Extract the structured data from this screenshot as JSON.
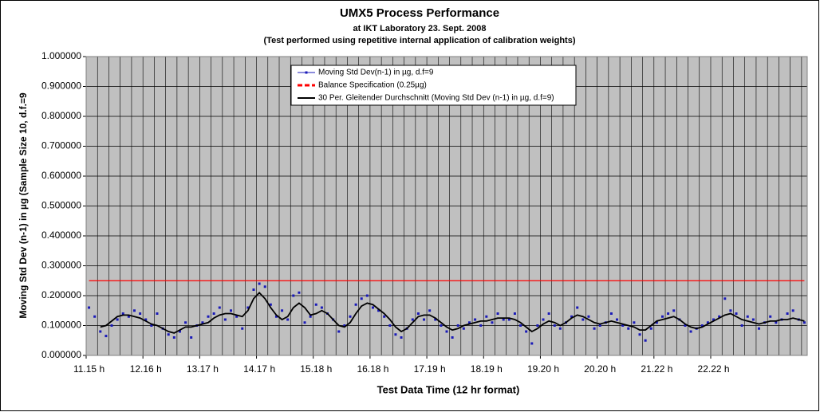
{
  "chart_data": {
    "type": "line",
    "title": "UMX5 Process Performance",
    "subtitle": [
      "at IKT Laboratory 23. Sept. 2008",
      "(Test performed using repetitive internal application of calibration weights)"
    ],
    "y_label": "Moving Std Dev (n-1) in µg (Sample Size 10, d.f.=9",
    "x_label": "Test Data Time (12 hr format)",
    "categories": [
      "11.15 h",
      null,
      null,
      null,
      null,
      null,
      null,
      null,
      null,
      null,
      "12.16 h",
      null,
      null,
      null,
      null,
      null,
      null,
      null,
      null,
      null,
      "13.17 h",
      null,
      null,
      null,
      null,
      null,
      null,
      null,
      null,
      null,
      "14.17 h",
      null,
      null,
      null,
      null,
      null,
      null,
      null,
      null,
      null,
      "15.18 h",
      null,
      null,
      null,
      null,
      null,
      null,
      null,
      null,
      null,
      "16.18 h",
      null,
      null,
      null,
      null,
      null,
      null,
      null,
      null,
      null,
      "17.19 h",
      null,
      null,
      null,
      null,
      null,
      null,
      null,
      null,
      null,
      "18.19 h",
      null,
      null,
      null,
      null,
      null,
      null,
      null,
      null,
      null,
      "19.20 h",
      null,
      null,
      null,
      null,
      null,
      null,
      null,
      null,
      null,
      "20.20 h",
      null,
      null,
      null,
      null,
      null,
      null,
      null,
      null,
      null,
      "21.22 h",
      null,
      null,
      null,
      null,
      null,
      null,
      null,
      null,
      null,
      "22.22 h",
      null,
      null,
      null,
      null,
      null,
      null,
      null,
      null,
      null,
      null,
      null,
      null,
      null,
      null,
      null,
      null
    ],
    "series": [
      {
        "name": "Moving Std Dev(n-1) in µg, d.f=9",
        "color": "#1a1ab8",
        "style": "markers",
        "values": [
          0.16,
          0.13,
          0.08,
          0.065,
          0.1,
          0.12,
          0.14,
          0.13,
          0.15,
          0.14,
          0.12,
          0.1,
          0.14,
          0.09,
          0.07,
          0.06,
          0.08,
          0.11,
          0.06,
          0.1,
          0.11,
          0.13,
          0.14,
          0.16,
          0.12,
          0.15,
          0.13,
          0.09,
          0.16,
          0.22,
          0.24,
          0.23,
          0.17,
          0.13,
          0.15,
          0.12,
          0.2,
          0.21,
          0.11,
          0.13,
          0.17,
          0.16,
          0.14,
          0.12,
          0.08,
          0.1,
          0.13,
          0.17,
          0.19,
          0.2,
          0.16,
          0.15,
          0.13,
          0.1,
          0.07,
          0.06,
          0.09,
          0.12,
          0.14,
          0.12,
          0.15,
          0.12,
          0.1,
          0.08,
          0.06,
          0.1,
          0.09,
          0.11,
          0.12,
          0.1,
          0.13,
          0.11,
          0.14,
          0.12,
          0.12,
          0.14,
          0.1,
          0.08,
          0.04,
          0.1,
          0.12,
          0.14,
          0.1,
          0.09,
          0.11,
          0.13,
          0.16,
          0.12,
          0.13,
          0.09,
          0.1,
          0.11,
          0.14,
          0.12,
          0.1,
          0.09,
          0.11,
          0.07,
          0.05,
          0.09,
          0.11,
          0.13,
          0.14,
          0.15,
          0.12,
          0.1,
          0.08,
          0.09,
          0.1,
          0.11,
          0.12,
          0.13,
          0.19,
          0.15,
          0.14,
          0.1,
          0.13,
          0.12,
          0.09,
          0.11,
          0.13,
          0.11,
          0.12,
          0.14,
          0.15,
          0.12,
          0.11
        ]
      },
      {
        "name": "Balance Specification (0.25µg)",
        "color": "#ff0000",
        "style": "dashed",
        "values": [
          0.25,
          0.25,
          0.25,
          0.25,
          0.25,
          0.25,
          0.25,
          0.25,
          0.25,
          0.25,
          0.25,
          0.25,
          0.25,
          0.25,
          0.25,
          0.25,
          0.25,
          0.25,
          0.25,
          0.25,
          0.25,
          0.25,
          0.25,
          0.25,
          0.25,
          0.25,
          0.25,
          0.25,
          0.25,
          0.25,
          0.25,
          0.25,
          0.25,
          0.25,
          0.25,
          0.25,
          0.25,
          0.25,
          0.25,
          0.25,
          0.25,
          0.25,
          0.25,
          0.25,
          0.25,
          0.25,
          0.25,
          0.25,
          0.25,
          0.25,
          0.25,
          0.25,
          0.25,
          0.25,
          0.25,
          0.25,
          0.25,
          0.25,
          0.25,
          0.25,
          0.25,
          0.25,
          0.25,
          0.25,
          0.25,
          0.25,
          0.25,
          0.25,
          0.25,
          0.25,
          0.25,
          0.25,
          0.25,
          0.25,
          0.25,
          0.25,
          0.25,
          0.25,
          0.25,
          0.25,
          0.25,
          0.25,
          0.25,
          0.25,
          0.25,
          0.25,
          0.25,
          0.25,
          0.25,
          0.25,
          0.25,
          0.25,
          0.25,
          0.25,
          0.25,
          0.25,
          0.25,
          0.25,
          0.25,
          0.25,
          0.25,
          0.25,
          0.25,
          0.25,
          0.25,
          0.25,
          0.25,
          0.25,
          0.25,
          0.25,
          0.25,
          0.25,
          0.25,
          0.25,
          0.25,
          0.25,
          0.25,
          0.25,
          0.25,
          0.25,
          0.25,
          0.25,
          0.25,
          0.25,
          0.25,
          0.25,
          0.25
        ]
      },
      {
        "name": "30 Per. Gleitender Durchschnitt (Moving Std Dev (n-1) in µg, d.f=9)",
        "color": "#000000",
        "style": "line",
        "values": [
          null,
          null,
          0.095,
          0.1,
          0.115,
          0.13,
          0.135,
          0.135,
          0.13,
          0.125,
          0.115,
          0.105,
          0.1,
          0.09,
          0.08,
          0.075,
          0.085,
          0.095,
          0.095,
          0.1,
          0.105,
          0.11,
          0.125,
          0.135,
          0.14,
          0.14,
          0.135,
          0.13,
          0.15,
          0.19,
          0.21,
          0.19,
          0.16,
          0.135,
          0.12,
          0.13,
          0.16,
          0.175,
          0.16,
          0.135,
          0.14,
          0.15,
          0.14,
          0.12,
          0.1,
          0.095,
          0.11,
          0.14,
          0.165,
          0.175,
          0.17,
          0.155,
          0.14,
          0.12,
          0.095,
          0.08,
          0.09,
          0.11,
          0.13,
          0.135,
          0.135,
          0.125,
          0.11,
          0.095,
          0.085,
          0.09,
          0.1,
          0.105,
          0.11,
          0.115,
          0.115,
          0.12,
          0.125,
          0.125,
          0.125,
          0.12,
          0.11,
          0.095,
          0.08,
          0.09,
          0.105,
          0.115,
          0.11,
          0.1,
          0.11,
          0.125,
          0.135,
          0.13,
          0.12,
          0.11,
          0.105,
          0.11,
          0.115,
          0.11,
          0.105,
          0.1,
          0.095,
          0.085,
          0.085,
          0.1,
          0.115,
          0.12,
          0.125,
          0.13,
          0.12,
          0.105,
          0.095,
          0.09,
          0.095,
          0.105,
          0.115,
          0.125,
          0.135,
          0.14,
          0.13,
          0.12,
          0.115,
          0.11,
          0.105,
          0.11,
          0.115,
          0.115,
          0.12,
          0.12,
          0.125,
          0.12,
          0.115
        ]
      }
    ],
    "ylim": [
      0,
      1
    ],
    "yticks": [
      {
        "value": 0,
        "label": "0.000000"
      },
      {
        "value": 0.1,
        "label": "0.100000"
      },
      {
        "value": 0.2,
        "label": "0.200000"
      },
      {
        "value": 0.3,
        "label": "0.300000"
      },
      {
        "value": 0.4,
        "label": "0.400000"
      },
      {
        "value": 0.5,
        "label": "0.500000"
      },
      {
        "value": 0.6,
        "label": "0.600000"
      },
      {
        "value": 0.7,
        "label": "0.700000"
      },
      {
        "value": 0.8,
        "label": "0.800000"
      },
      {
        "value": 0.9,
        "label": "0.900000"
      },
      {
        "value": 1,
        "label": "1.000000"
      }
    ],
    "grid": true,
    "legend": "top"
  }
}
